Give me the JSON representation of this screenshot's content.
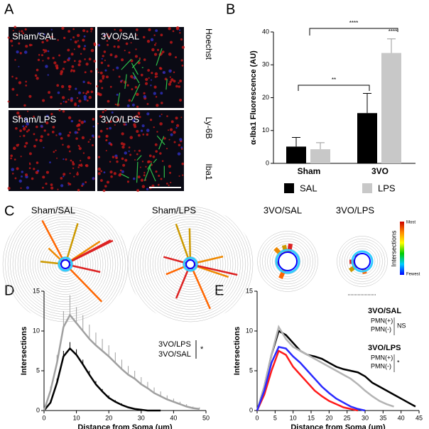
{
  "panel_labels": [
    "A",
    "B",
    "C",
    "D",
    "E"
  ],
  "panel_a": {
    "tiles": [
      "Sham/SAL",
      "3VO/SAL",
      "Sham/LPS",
      "3VO/LPS"
    ],
    "stains": [
      {
        "text": "Hoechst",
        "color": "#2a3cff"
      },
      {
        "text": "Ly-6B",
        "color": "#22c422"
      },
      {
        "text": "Iba1",
        "color": "#ff2020"
      }
    ]
  },
  "panel_c": {
    "cells": [
      "Sham/SAL",
      "Sham/LPS",
      "3VO/SAL",
      "3VO/LPS"
    ],
    "colorbar": {
      "title": "Intersections",
      "max": "Most",
      "min": "Fewest"
    }
  },
  "chart_data": [
    {
      "type": "bar",
      "ylabel": "α-Iba1 Fluorescence (AU)",
      "categories": [
        "Sham",
        "3VO"
      ],
      "series": [
        {
          "name": "SAL",
          "color": "#000000",
          "values": [
            5.1,
            15.3
          ],
          "errors": [
            2.8,
            6
          ]
        },
        {
          "name": "LPS",
          "color": "#c8c8c8",
          "values": [
            4.3,
            33.6
          ],
          "errors": [
            2,
            4.3
          ]
        }
      ],
      "ylim": [
        0,
        40
      ],
      "yticks": [
        0,
        10,
        20,
        30,
        40
      ],
      "annotations": [
        "**",
        "****",
        "****"
      ]
    },
    {
      "type": "line",
      "xlabel": "Distance from Soma (μm)",
      "ylabel": "Intersections",
      "x": [
        0,
        2,
        4,
        6,
        8,
        10,
        12,
        14,
        16,
        18,
        20,
        22,
        24,
        26,
        28,
        30,
        32,
        34,
        36,
        38,
        40,
        42,
        44,
        46,
        48,
        50
      ],
      "series": [
        {
          "name": "3VO/LPS",
          "color": "#000000",
          "values": [
            0,
            1,
            3.5,
            6.8,
            7.8,
            7,
            5.8,
            4.5,
            3.3,
            2.4,
            1.6,
            1.1,
            0.7,
            0.4,
            0.2,
            0.1,
            0,
            0,
            0,
            null,
            null,
            null,
            null,
            null,
            null,
            null
          ],
          "errors": [
            0,
            0.3,
            0.5,
            0.7,
            0.8,
            0.7,
            0.6,
            0.5,
            0.4,
            0.3,
            0.3,
            0.2,
            0.2,
            0.1,
            0.1,
            0.1,
            0,
            0,
            0,
            null,
            null,
            null,
            null,
            null,
            null,
            null
          ]
        },
        {
          "name": "3VO/SAL",
          "color": "#a0a0a0",
          "values": [
            0,
            2.5,
            6,
            10.5,
            12,
            11,
            10,
            9,
            8.2,
            7.5,
            6.8,
            6,
            5.2,
            4.5,
            4,
            3.3,
            2.8,
            2.2,
            1.8,
            1.4,
            1.1,
            0.8,
            0.5,
            0.3,
            0.2,
            null
          ],
          "errors": [
            0,
            0.5,
            1,
            2,
            2.5,
            2,
            2,
            1.8,
            1.6,
            1.5,
            1.4,
            1.3,
            1.2,
            1.1,
            1,
            0.9,
            0.8,
            0.7,
            0.6,
            0.5,
            0.4,
            0.3,
            0.3,
            0.2,
            0.2,
            null
          ]
        }
      ],
      "significance": "*",
      "xlim": [
        0,
        50
      ],
      "xticks": [
        0,
        10,
        20,
        30,
        40,
        50
      ],
      "ylim": [
        0,
        15
      ],
      "yticks": [
        0,
        5,
        10,
        15
      ]
    },
    {
      "type": "line",
      "xlabel": "Distance from Soma (μm)",
      "ylabel": "Intersections",
      "x": [
        0,
        2,
        4,
        6,
        8,
        10,
        12,
        14,
        16,
        18,
        20,
        22,
        24,
        26,
        28,
        30,
        32,
        34,
        36,
        38,
        40,
        42,
        44
      ],
      "legend_groups": [
        {
          "title": "3VO/SAL",
          "significance": "NS"
        },
        {
          "title": "3VO/LPS",
          "significance": "*"
        }
      ],
      "series": [
        {
          "name": "PMN(+)",
          "color": "#000000",
          "values": [
            0,
            3,
            7,
            10,
            9.5,
            8.5,
            7.5,
            7,
            6.8,
            6.5,
            6,
            5.5,
            5.2,
            5,
            4.8,
            4.3,
            3.5,
            3,
            2.5,
            2,
            1.5,
            1,
            0.5
          ]
        },
        {
          "name": "PMN(-)",
          "color": "#b4b4b4",
          "values": [
            0,
            3,
            7,
            10.5,
            9,
            8,
            7.5,
            7,
            6.5,
            6,
            5.5,
            5,
            4.5,
            4,
            3.3,
            2.5,
            1.8,
            1.2,
            0.8,
            0.5,
            null,
            null,
            null
          ]
        },
        {
          "name": "PMN(+)",
          "color": "#ff1a1a",
          "values": [
            0,
            2,
            5,
            7.5,
            7,
            5.5,
            4.5,
            3.5,
            2.5,
            1.8,
            1.2,
            0.8,
            0.4,
            0.2,
            0,
            null,
            null,
            null,
            null,
            null,
            null,
            null,
            null
          ]
        },
        {
          "name": "PMN(-)",
          "color": "#2a2aff",
          "values": [
            0,
            2.5,
            6,
            8,
            7.8,
            6.8,
            6,
            5,
            4,
            3,
            2.2,
            1.5,
            1,
            0.5,
            0.2,
            0,
            null,
            null,
            null,
            null,
            null,
            null,
            null
          ]
        }
      ],
      "xlim": [
        0,
        45
      ],
      "xticks": [
        0,
        5,
        10,
        15,
        20,
        25,
        30,
        35,
        40,
        45
      ],
      "ylim": [
        0,
        15
      ],
      "yticks": [
        0,
        5,
        10,
        15
      ]
    }
  ]
}
